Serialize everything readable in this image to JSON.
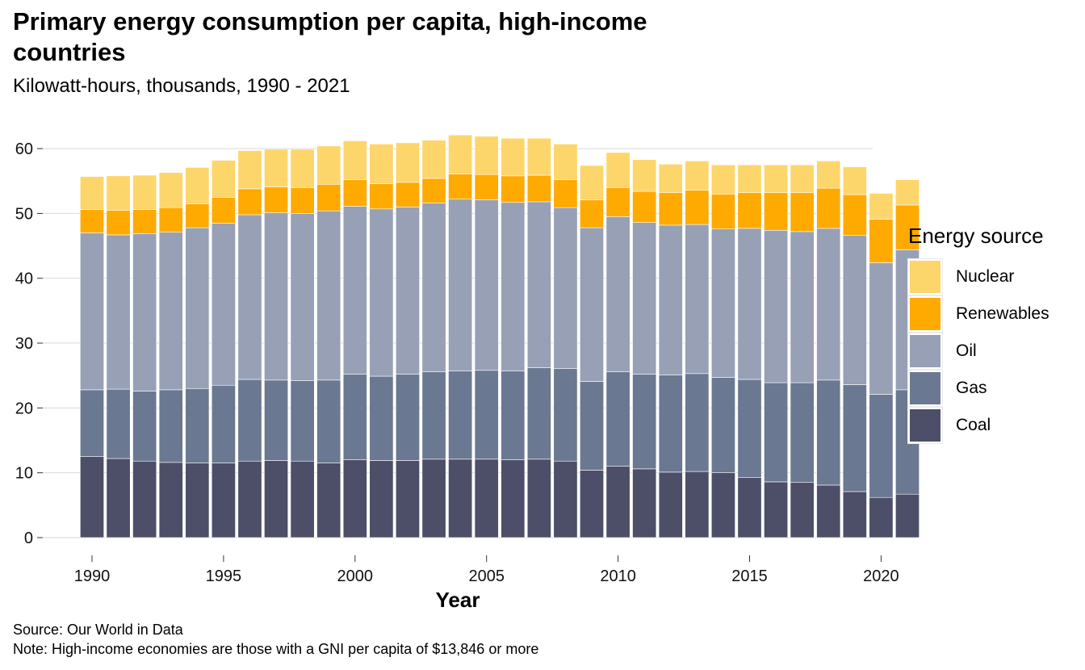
{
  "title": "Primary energy consumption per capita, high-income countries",
  "subtitle": "Kilowatt-hours, thousands, 1990 - 2021",
  "legend": {
    "title": "Energy source",
    "items": [
      {
        "label": "Nuclear",
        "color": "#FDD66B"
      },
      {
        "label": "Renewables",
        "color": "#FFAA00"
      },
      {
        "label": "Oil",
        "color": "#98A0B6"
      },
      {
        "label": "Gas",
        "color": "#6B7891"
      },
      {
        "label": "Coal",
        "color": "#4D4F68"
      }
    ]
  },
  "footer": {
    "source": "Source: Our World in Data",
    "note": "Note: High-income economies are those with a GNI per capita of $13,846 or more"
  },
  "chart_data": {
    "type": "bar",
    "stacked": true,
    "xlabel": "Year",
    "ylabel": "",
    "ylim": [
      0,
      63
    ],
    "yticks": [
      0,
      10,
      20,
      30,
      40,
      50,
      60
    ],
    "xticks": [
      1990,
      1995,
      2000,
      2005,
      2010,
      2015,
      2020
    ],
    "grid": "horizontal",
    "legend_position": "right",
    "categories": [
      1990,
      1991,
      1992,
      1993,
      1994,
      1995,
      1996,
      1997,
      1998,
      1999,
      2000,
      2001,
      2002,
      2003,
      2004,
      2005,
      2006,
      2007,
      2008,
      2009,
      2010,
      2011,
      2012,
      2013,
      2014,
      2015,
      2016,
      2017,
      2018,
      2019,
      2020,
      2021
    ],
    "series": [
      {
        "name": "Coal",
        "color": "#4D4F68",
        "values": [
          12.5,
          12.2,
          11.8,
          11.6,
          11.5,
          11.5,
          11.8,
          11.9,
          11.8,
          11.5,
          12.0,
          11.9,
          11.9,
          12.1,
          12.1,
          12.1,
          12.0,
          12.1,
          11.8,
          10.4,
          11.0,
          10.6,
          10.1,
          10.2,
          10.0,
          9.3,
          8.6,
          8.5,
          8.1,
          7.1,
          6.2,
          6.7
        ]
      },
      {
        "name": "Gas",
        "color": "#6B7891",
        "values": [
          10.3,
          10.7,
          10.8,
          11.2,
          11.5,
          12.0,
          12.6,
          12.4,
          12.4,
          12.8,
          13.2,
          13.0,
          13.3,
          13.5,
          13.6,
          13.7,
          13.7,
          14.1,
          14.3,
          13.7,
          14.6,
          14.6,
          15.0,
          15.1,
          14.7,
          15.1,
          15.3,
          15.4,
          16.2,
          16.5,
          15.9,
          16.1
        ]
      },
      {
        "name": "Oil",
        "color": "#98A0B6",
        "values": [
          24.2,
          23.8,
          24.3,
          24.3,
          24.8,
          25.0,
          25.4,
          25.8,
          25.8,
          26.1,
          25.9,
          25.8,
          25.8,
          26.0,
          26.5,
          26.3,
          26.0,
          25.6,
          24.8,
          23.7,
          23.9,
          23.4,
          23.1,
          23.0,
          22.9,
          23.3,
          23.5,
          23.3,
          23.4,
          23.0,
          20.3,
          21.6
        ]
      },
      {
        "name": "Renewables",
        "color": "#FFAA00",
        "values": [
          3.6,
          3.8,
          3.7,
          3.8,
          3.7,
          4.0,
          4.0,
          4.0,
          4.0,
          4.1,
          4.1,
          3.9,
          3.8,
          3.8,
          3.9,
          3.9,
          4.1,
          4.1,
          4.3,
          4.3,
          4.5,
          4.8,
          5.0,
          5.3,
          5.4,
          5.5,
          5.8,
          6.0,
          6.2,
          6.3,
          6.7,
          6.9
        ]
      },
      {
        "name": "Nuclear",
        "color": "#FDD66B",
        "values": [
          5.1,
          5.3,
          5.3,
          5.4,
          5.6,
          5.7,
          5.9,
          5.8,
          5.9,
          5.9,
          6.0,
          6.1,
          6.1,
          5.9,
          6.0,
          5.9,
          5.8,
          5.7,
          5.5,
          5.3,
          5.4,
          4.9,
          4.4,
          4.5,
          4.5,
          4.3,
          4.3,
          4.3,
          4.2,
          4.3,
          4.0,
          3.9
        ]
      }
    ]
  }
}
